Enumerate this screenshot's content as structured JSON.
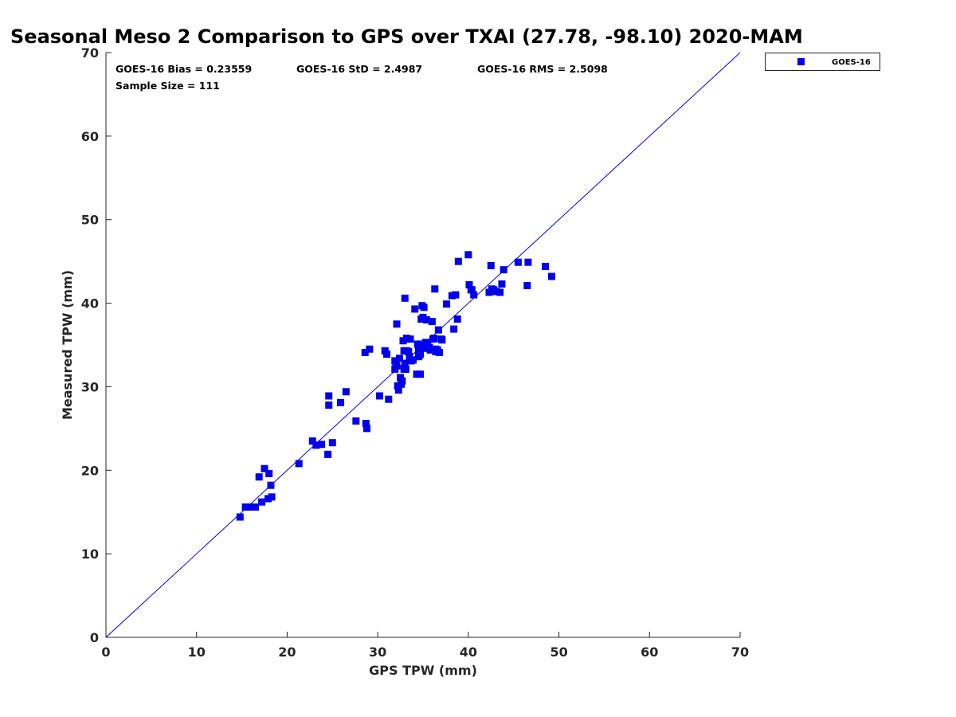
{
  "chart_data": {
    "type": "scatter",
    "title": "Seasonal Meso 2 Comparison to GPS over TXAI (27.78, -98.10) 2020-MAM",
    "xlabel": "GPS TPW (mm)",
    "ylabel": "Measured TPW (mm)",
    "xlim": [
      0,
      70
    ],
    "ylim": [
      0,
      70
    ],
    "xticks": [
      "0",
      "10",
      "20",
      "30",
      "40",
      "50",
      "60",
      "70"
    ],
    "yticks": [
      "0",
      "10",
      "20",
      "30",
      "40",
      "50",
      "60",
      "70"
    ],
    "grid": false,
    "legend_position": "outside-top-right",
    "reference_line": {
      "x": [
        0,
        70
      ],
      "y": [
        0,
        70
      ]
    },
    "stats": {
      "bias": "GOES-16 Bias = 0.23559",
      "std": "GOES-16 StD = 2.4987",
      "rms": "GOES-16 RMS = 2.5098",
      "sample_size": "Sample Size = 111"
    },
    "series": [
      {
        "name": "GOES-16",
        "color": "#0000ee",
        "marker": "square",
        "x": [
          14.8,
          15.4,
          15.9,
          16.5,
          16.9,
          17.2,
          17.5,
          17.9,
          18.0,
          18.2,
          18.3,
          21.3,
          22.8,
          23.2,
          23.8,
          24.5,
          24.6,
          24.6,
          25.0,
          25.9,
          26.5,
          27.6,
          28.6,
          28.7,
          28.8,
          29.1,
          30.2,
          31.0,
          31.2,
          31.9,
          32.0,
          32.1,
          32.2,
          32.3,
          32.4,
          32.5,
          32.6,
          32.7,
          32.8,
          32.9,
          33.0,
          33.1,
          33.2,
          33.4,
          33.5,
          33.7,
          33.9,
          34.1,
          34.3,
          34.4,
          34.5,
          34.6,
          34.7,
          34.8,
          34.9,
          35.0,
          35.1,
          35.2,
          35.3,
          35.4,
          35.5,
          35.6,
          35.8,
          36.0,
          36.2,
          36.3,
          36.4,
          36.6,
          36.7,
          36.8,
          37.1,
          37.6,
          38.4,
          38.6,
          38.8,
          38.9,
          40.0,
          40.1,
          40.4,
          40.6,
          42.3,
          42.5,
          42.8,
          43.5,
          43.7,
          43.9,
          45.5,
          46.6,
          48.5,
          49.2,
          30.8,
          33.0,
          35.0,
          36.1,
          34.5,
          32.9,
          31.9,
          33.6,
          34.8,
          35.7,
          37.0,
          42.6,
          43.1,
          40.3,
          46.5,
          34.7,
          33.2,
          32.1,
          35.5,
          36.4,
          38.2
        ],
        "y": [
          14.4,
          15.6,
          15.6,
          15.6,
          19.2,
          16.2,
          20.2,
          16.6,
          19.6,
          18.2,
          16.8,
          20.8,
          23.5,
          23.0,
          23.1,
          21.9,
          27.8,
          28.9,
          23.3,
          28.1,
          29.4,
          25.9,
          34.1,
          25.6,
          25.0,
          34.5,
          28.9,
          33.9,
          28.5,
          32.1,
          32.8,
          37.5,
          30.1,
          29.6,
          33.4,
          31.1,
          30.3,
          30.7,
          35.5,
          34.3,
          40.6,
          32.1,
          35.8,
          34.2,
          33.6,
          33.1,
          33.2,
          39.3,
          31.5,
          35.1,
          34.4,
          33.8,
          31.5,
          38.1,
          39.7,
          34.6,
          39.5,
          34.9,
          35.3,
          38.0,
          34.8,
          34.6,
          34.4,
          37.8,
          35.8,
          41.7,
          34.5,
          34.4,
          36.8,
          34.1,
          35.6,
          39.9,
          36.9,
          41.0,
          38.1,
          45.0,
          45.8,
          42.2,
          41.6,
          41.0,
          41.3,
          44.5,
          41.6,
          41.3,
          42.3,
          44.0,
          44.9,
          44.9,
          44.4,
          43.2,
          34.3,
          32.8,
          38.3,
          35.7,
          33.6,
          32.1,
          33.1,
          35.7,
          35.1,
          34.7,
          35.7,
          41.7,
          41.4,
          41.6,
          42.1,
          33.9,
          34.3,
          32.5,
          35.2,
          34.2,
          40.9
        ]
      }
    ]
  }
}
